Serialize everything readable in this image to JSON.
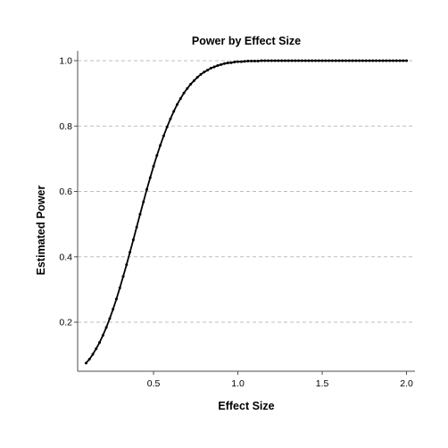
{
  "chart_data": {
    "type": "line",
    "title": "Power by Effect Size",
    "xlabel": "Effect Size",
    "ylabel": "Estimated Power",
    "xlim": [
      0.05,
      2.05
    ],
    "ylim": [
      0.05,
      1.03
    ],
    "x_ticks": [
      0.5,
      1.0,
      1.5,
      2.0
    ],
    "x_tick_labels": [
      "0.5",
      "1.0",
      "1.5",
      "2.0"
    ],
    "y_ticks": [
      0.2,
      0.4,
      0.6,
      0.8,
      1.0
    ],
    "y_tick_labels": [
      "0.2",
      "0.4",
      "0.6",
      "0.8",
      "1.0"
    ],
    "grid": "horizontal-dashed",
    "legend": "none",
    "series": [
      {
        "color": "#000000",
        "marker": "dot",
        "x": [
          0.1,
          0.12,
          0.14,
          0.16,
          0.18,
          0.2,
          0.22,
          0.24,
          0.26,
          0.28,
          0.3,
          0.32,
          0.34,
          0.36,
          0.38,
          0.4,
          0.42,
          0.44,
          0.46,
          0.48,
          0.5,
          0.52,
          0.54,
          0.56,
          0.58,
          0.6,
          0.62,
          0.64,
          0.66,
          0.68,
          0.7,
          0.72,
          0.74,
          0.76,
          0.78,
          0.8,
          0.82,
          0.84,
          0.86,
          0.88,
          0.9,
          0.92,
          0.94,
          0.96,
          0.98,
          1.0,
          1.02,
          1.04,
          1.06,
          1.08,
          1.1,
          1.12,
          1.14,
          1.16,
          1.18,
          1.2,
          1.22,
          1.24,
          1.26,
          1.28,
          1.3,
          1.32,
          1.34,
          1.36,
          1.38,
          1.4,
          1.42,
          1.44,
          1.46,
          1.48,
          1.5,
          1.52,
          1.54,
          1.56,
          1.58,
          1.6,
          1.62,
          1.64,
          1.66,
          1.68,
          1.7,
          1.72,
          1.74,
          1.76,
          1.78,
          1.8,
          1.82,
          1.84,
          1.86,
          1.88,
          1.9,
          1.92,
          1.94,
          1.96,
          1.98,
          2.0
        ],
        "y": [
          0.075,
          0.087,
          0.102,
          0.119,
          0.138,
          0.16,
          0.184,
          0.211,
          0.24,
          0.271,
          0.305,
          0.34,
          0.376,
          0.414,
          0.452,
          0.491,
          0.53,
          0.568,
          0.606,
          0.642,
          0.677,
          0.71,
          0.741,
          0.77,
          0.797,
          0.822,
          0.845,
          0.866,
          0.884,
          0.901,
          0.915,
          0.928,
          0.939,
          0.949,
          0.958,
          0.965,
          0.971,
          0.977,
          0.981,
          0.985,
          0.988,
          0.991,
          0.993,
          0.994,
          0.996,
          0.997,
          0.997,
          0.998,
          0.999,
          0.999,
          0.999,
          0.999,
          1.0,
          1.0,
          1.0,
          1.0,
          1.0,
          1.0,
          1.0,
          1.0,
          1.0,
          1.0,
          1.0,
          1.0,
          1.0,
          1.0,
          1.0,
          1.0,
          1.0,
          1.0,
          1.0,
          1.0,
          1.0,
          1.0,
          1.0,
          1.0,
          1.0,
          1.0,
          1.0,
          1.0,
          1.0,
          1.0,
          1.0,
          1.0,
          1.0,
          1.0,
          1.0,
          1.0,
          1.0,
          1.0,
          1.0,
          1.0,
          1.0,
          1.0,
          1.0,
          1.0
        ]
      }
    ]
  },
  "colors": {
    "line": "#000000",
    "grid": "#bdbdbd",
    "axis": "#4d4d4d",
    "background": "#ffffff"
  }
}
